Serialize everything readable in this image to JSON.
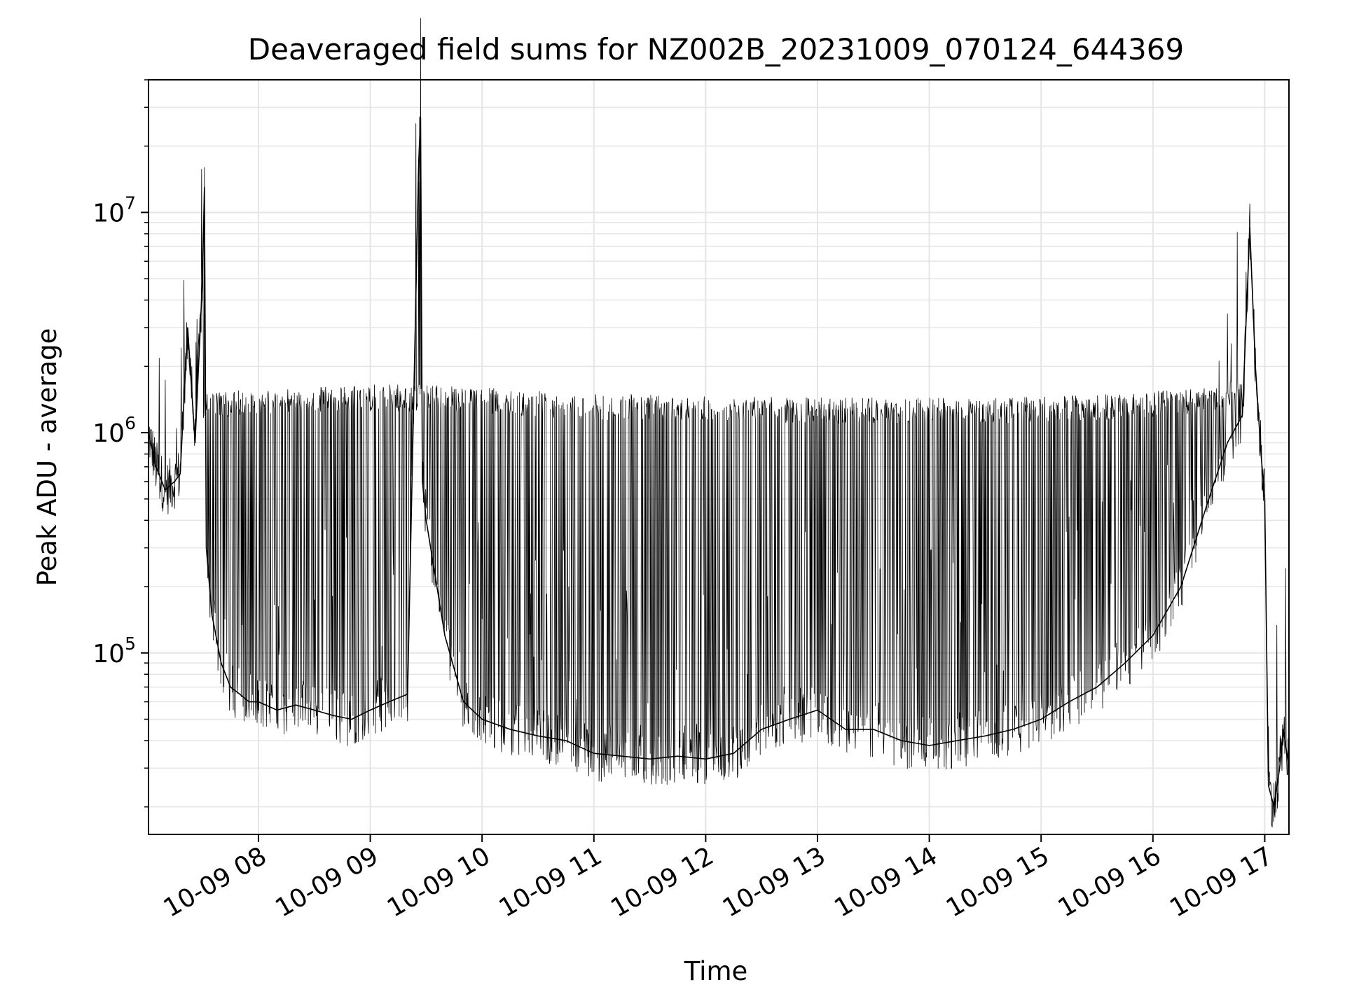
{
  "chart_data": {
    "type": "line",
    "title": "Deaveraged field sums for NZ002B_20231009_070124_644369",
    "xlabel": "Time",
    "ylabel": "Peak ADU - average",
    "yscale": "log",
    "xlim": [
      "2023-10-09 07:01",
      "2023-10-09 17:13"
    ],
    "ylim": [
      15000,
      40000000
    ],
    "grid": true,
    "line_color": "#000000",
    "grid_color": "#e5e5e5",
    "x_ticks": [
      {
        "value": "2023-10-09 08:00",
        "label": "10-09 08"
      },
      {
        "value": "2023-10-09 09:00",
        "label": "10-09 09"
      },
      {
        "value": "2023-10-09 10:00",
        "label": "10-09 10"
      },
      {
        "value": "2023-10-09 11:00",
        "label": "10-09 11"
      },
      {
        "value": "2023-10-09 12:00",
        "label": "10-09 12"
      },
      {
        "value": "2023-10-09 13:00",
        "label": "10-09 13"
      },
      {
        "value": "2023-10-09 14:00",
        "label": "10-09 14"
      },
      {
        "value": "2023-10-09 15:00",
        "label": "10-09 15"
      },
      {
        "value": "2023-10-09 16:00",
        "label": "10-09 16"
      },
      {
        "value": "2023-10-09 17:00",
        "label": "10-09 17"
      }
    ],
    "y_ticks": [
      {
        "value": 100000,
        "base": "10",
        "exp": "5"
      },
      {
        "value": 1000000,
        "base": "10",
        "exp": "6"
      },
      {
        "value": 10000000,
        "base": "10",
        "exp": "7"
      }
    ],
    "series": [
      {
        "name": "",
        "x": [
          "2023-10-09 07:01",
          "2023-10-09 07:05",
          "2023-10-09 07:10",
          "2023-10-09 07:15",
          "2023-10-09 07:18",
          "2023-10-09 07:22",
          "2023-10-09 07:26",
          "2023-10-09 07:30",
          "2023-10-09 07:31",
          "2023-10-09 07:32",
          "2023-10-09 07:35",
          "2023-10-09 07:40",
          "2023-10-09 07:45",
          "2023-10-09 07:50",
          "2023-10-09 07:55",
          "2023-10-09 08:00",
          "2023-10-09 08:10",
          "2023-10-09 08:20",
          "2023-10-09 08:30",
          "2023-10-09 08:40",
          "2023-10-09 08:50",
          "2023-10-09 09:00",
          "2023-10-09 09:10",
          "2023-10-09 09:20",
          "2023-10-09 09:26",
          "2023-10-09 09:27",
          "2023-10-09 09:28",
          "2023-10-09 09:30",
          "2023-10-09 09:40",
          "2023-10-09 09:50",
          "2023-10-09 10:00",
          "2023-10-09 10:15",
          "2023-10-09 10:30",
          "2023-10-09 10:45",
          "2023-10-09 11:00",
          "2023-10-09 11:15",
          "2023-10-09 11:30",
          "2023-10-09 11:45",
          "2023-10-09 12:00",
          "2023-10-09 12:15",
          "2023-10-09 12:30",
          "2023-10-09 12:45",
          "2023-10-09 13:00",
          "2023-10-09 13:15",
          "2023-10-09 13:30",
          "2023-10-09 13:45",
          "2023-10-09 14:00",
          "2023-10-09 14:15",
          "2023-10-09 14:30",
          "2023-10-09 14:45",
          "2023-10-09 15:00",
          "2023-10-09 15:15",
          "2023-10-09 15:30",
          "2023-10-09 15:45",
          "2023-10-09 16:00",
          "2023-10-09 16:15",
          "2023-10-09 16:30",
          "2023-10-09 16:40",
          "2023-10-09 16:48",
          "2023-10-09 16:52",
          "2023-10-09 16:55",
          "2023-10-09 16:58",
          "2023-10-09 17:00",
          "2023-10-09 17:02",
          "2023-10-09 17:05",
          "2023-10-09 17:08",
          "2023-10-09 17:10",
          "2023-10-09 17:13"
        ],
        "y": [
          1000000,
          700000,
          550000,
          600000,
          650000,
          3000000,
          900000,
          5000000,
          13000000,
          300000,
          150000,
          90000,
          70000,
          65000,
          60000,
          60000,
          55000,
          58000,
          55000,
          52000,
          50000,
          55000,
          60000,
          65000,
          17000000,
          27000000,
          600000,
          400000,
          120000,
          60000,
          50000,
          45000,
          42000,
          40000,
          35000,
          34000,
          33000,
          34000,
          33000,
          35000,
          45000,
          50000,
          55000,
          45000,
          45000,
          40000,
          38000,
          40000,
          42000,
          45000,
          50000,
          60000,
          70000,
          90000,
          120000,
          200000,
          500000,
          900000,
          1200000,
          8500000,
          2000000,
          800000,
          500000,
          25000,
          20000,
          30000,
          45000,
          30000
        ]
      },
      {
        "name": "",
        "x": [
          "2023-10-09 07:30",
          "2023-10-09 08:00",
          "2023-10-09 08:30",
          "2023-10-09 09:00",
          "2023-10-09 09:30",
          "2023-10-09 10:00",
          "2023-10-09 10:30",
          "2023-10-09 11:00",
          "2023-10-09 11:30",
          "2023-10-09 12:00",
          "2023-10-09 12:30",
          "2023-10-09 13:00",
          "2023-10-09 13:30",
          "2023-10-09 14:00",
          "2023-10-09 14:30",
          "2023-10-09 15:00",
          "2023-10-09 15:30",
          "2023-10-09 16:00",
          "2023-10-09 16:30",
          "2023-10-09 16:48"
        ],
        "y": [
          1500000,
          1600000,
          1600000,
          1650000,
          1650000,
          1600000,
          1550000,
          1500000,
          1500000,
          1480000,
          1450000,
          1450000,
          1450000,
          1450000,
          1450000,
          1450000,
          1500000,
          1550000,
          1600000,
          1800000
        ]
      }
    ]
  }
}
